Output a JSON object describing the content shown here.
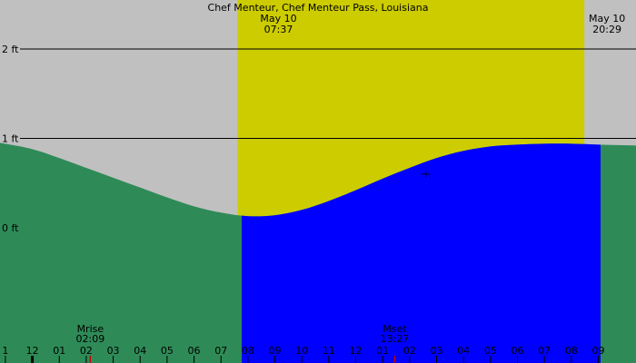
{
  "colors": {
    "background": "#c0c0c0",
    "daylight": "#cccc00",
    "tide_fill_night": "#2e8b57",
    "tide_fill_day": "#0000ff",
    "gridline": "#000000",
    "moon_tick": "#cc0000"
  },
  "chart_data": {
    "type": "area",
    "title": "Chef Menteur, Chef Menteur Pass, Louisiana",
    "y_unit": "ft",
    "y_ticks": [
      {
        "value": 2,
        "label": "2 ft"
      },
      {
        "value": 1,
        "label": "1 ft"
      },
      {
        "value": 0,
        "label": "0 ft"
      }
    ],
    "x_range_hours": [
      -1.2,
      22.4
    ],
    "x_tick_labels": [
      "1",
      "12",
      "01",
      "02",
      "03",
      "04",
      "05",
      "06",
      "07",
      "08",
      "09",
      "10",
      "11",
      "12",
      "01",
      "02",
      "03",
      "04",
      "05",
      "06",
      "07",
      "08",
      "09"
    ],
    "x_tick_hours": [
      -1,
      0,
      1,
      2,
      3,
      4,
      5,
      6,
      7,
      8,
      9,
      10,
      11,
      12,
      13,
      14,
      15,
      16,
      17,
      18,
      19,
      20,
      21
    ],
    "sunrise": {
      "date": "May 10",
      "time": "07:37",
      "hour": 7.617
    },
    "sunset": {
      "date": "May 10",
      "time": "20:29",
      "hour": 20.483
    },
    "moonrise": {
      "label": "Mrise",
      "time": "02:09",
      "hour": 2.15
    },
    "moonset": {
      "label": "Mset",
      "time": "13:27",
      "hour": 13.45
    },
    "tide_curve": {
      "x_hours": [
        -1.2,
        0,
        1,
        2,
        3,
        4,
        5,
        6,
        7,
        8,
        9,
        10,
        11,
        12,
        13,
        14,
        15,
        16,
        17,
        18,
        19,
        20,
        21,
        22.4
      ],
      "height_ft": [
        0.95,
        0.88,
        0.78,
        0.67,
        0.56,
        0.45,
        0.34,
        0.24,
        0.17,
        0.13,
        0.14,
        0.2,
        0.3,
        0.42,
        0.55,
        0.67,
        0.78,
        0.86,
        0.91,
        0.93,
        0.94,
        0.94,
        0.93,
        0.92
      ]
    },
    "marker": {
      "hour": 14.6,
      "height_ft": 0.6
    }
  }
}
